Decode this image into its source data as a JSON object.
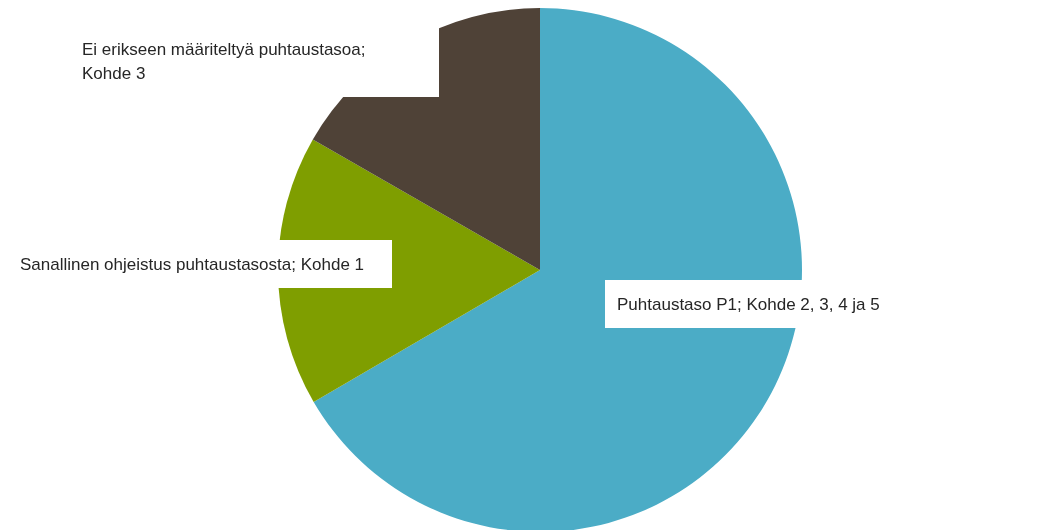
{
  "chart_data": {
    "type": "pie",
    "categories": [
      "Puhtaustaso P1; Kohde 2, 3, 4 ja 5",
      "Sanallinen ohjeistus puhtaustasosta; Kohde 1",
      "Ei erikseen määriteltyä puhtaustasoa; Kohde 3"
    ],
    "values": [
      66.6,
      16.7,
      16.7
    ],
    "colors": [
      "#4bacc6",
      "#7f9e00",
      "#4f4237"
    ],
    "legend": false
  }
}
